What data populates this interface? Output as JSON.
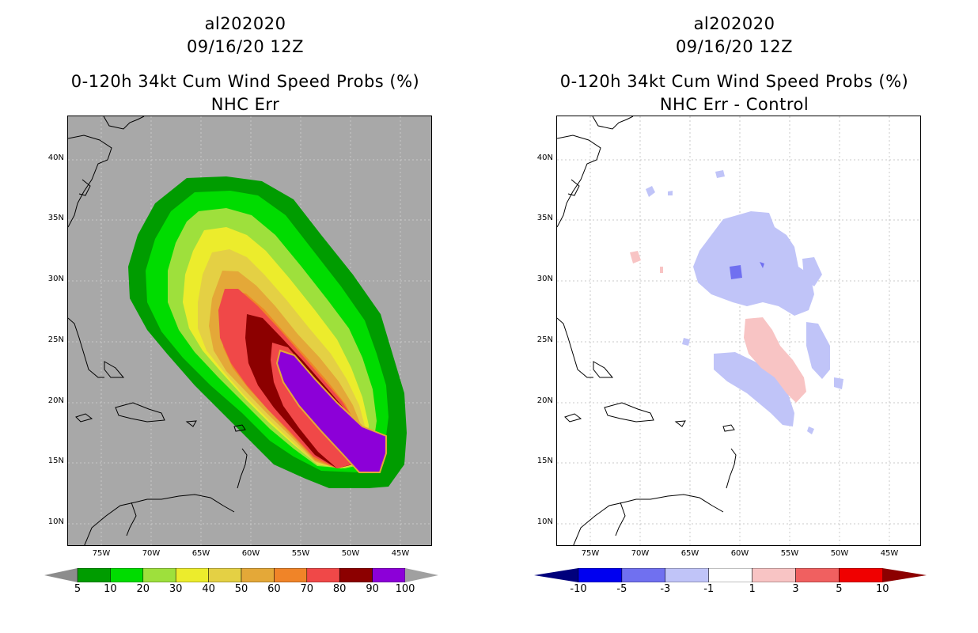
{
  "left_panel": {
    "storm_id": "al202020",
    "datetime": "09/16/20 12Z",
    "product": "0-120h 34kt Cum Wind Speed Probs (%)",
    "subtitle": "NHC Err",
    "legend_levels": [
      "5",
      "10",
      "20",
      "30",
      "40",
      "50",
      "60",
      "70",
      "80",
      "90",
      "100"
    ],
    "legend_colors": [
      "#8c8c8c",
      "#009c00",
      "#00dc00",
      "#9ee03c",
      "#ecec2c",
      "#e4d044",
      "#e4a838",
      "#f08428",
      "#f04848",
      "#8c0000",
      "#8c00d8",
      "#a0a0a0"
    ]
  },
  "right_panel": {
    "storm_id": "al202020",
    "datetime": "09/16/20 12Z",
    "product": "0-120h 34kt Cum Wind Speed Probs (%)",
    "subtitle": "NHC Err - Control",
    "legend_levels": [
      "-10",
      "-5",
      "-3",
      "-1",
      "1",
      "3",
      "5",
      "10"
    ],
    "legend_colors": [
      "#00007c",
      "#0000f0",
      "#7070f0",
      "#c0c4f8",
      "#ffffff",
      "#f8c4c4",
      "#f06060",
      "#f00000",
      "#8c0000"
    ]
  },
  "axes": {
    "lat_labels": [
      "40N",
      "35N",
      "30N",
      "25N",
      "20N",
      "15N",
      "10N"
    ],
    "lon_labels": [
      "75W",
      "70W",
      "65W",
      "60W",
      "55W",
      "50W",
      "45W"
    ]
  },
  "colors": {
    "ocean_left": "#a8a8a8",
    "ocean_right": "#ffffff",
    "land_line": "#000000"
  }
}
